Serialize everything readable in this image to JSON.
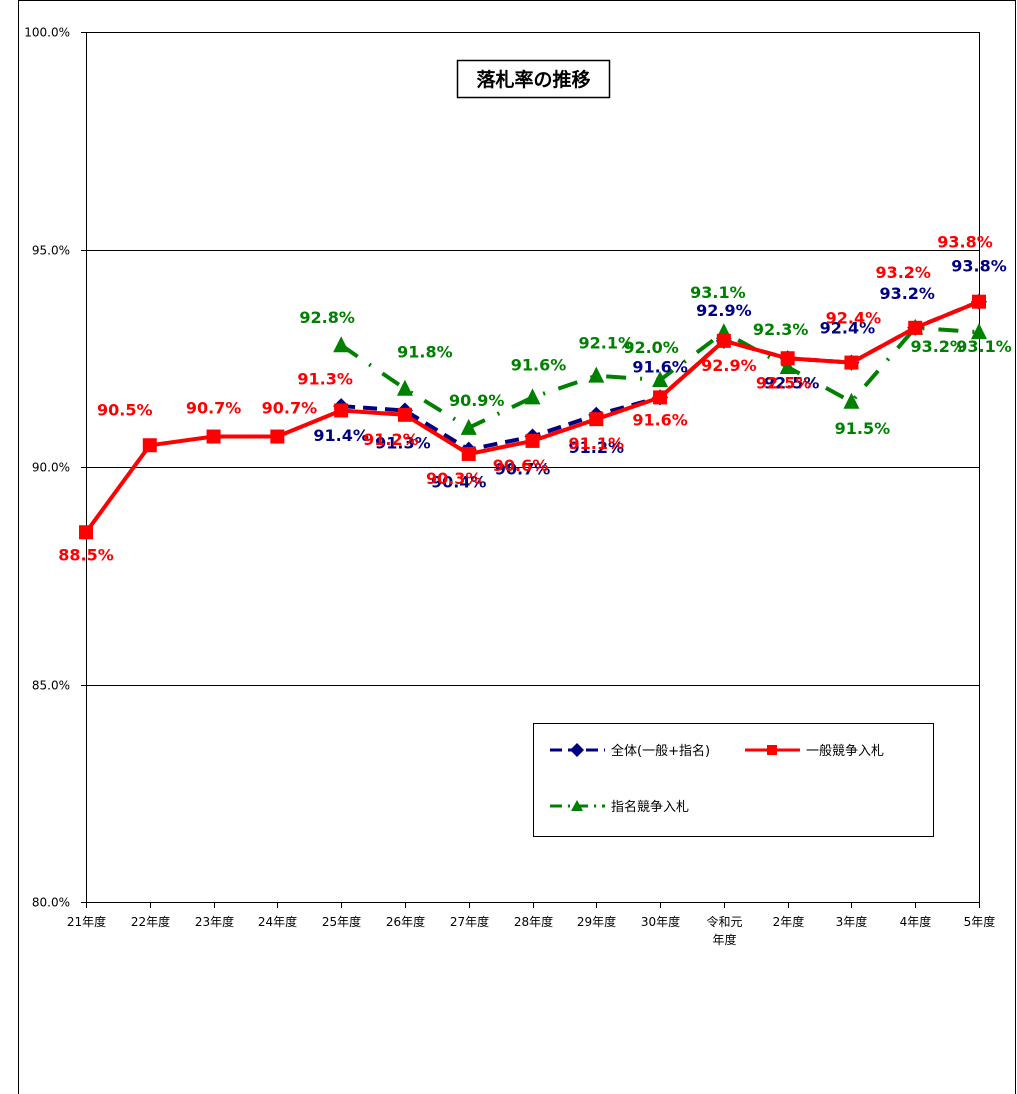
{
  "chart_data": {
    "type": "line",
    "title": "落札率の推移",
    "xlabel": "",
    "ylabel": "",
    "ylim": [
      80,
      100
    ],
    "y_ticks": [
      "80.0%",
      "85.0%",
      "90.0%",
      "95.0%",
      "100.0%"
    ],
    "y_tick_values": [
      80,
      85,
      90,
      95,
      100
    ],
    "categories": [
      [
        "21年度"
      ],
      [
        "22年度"
      ],
      [
        "23年度"
      ],
      [
        "24年度"
      ],
      [
        "25年度"
      ],
      [
        "26年度"
      ],
      [
        "27年度"
      ],
      [
        "28年度"
      ],
      [
        "29年度"
      ],
      [
        "30年度"
      ],
      [
        "令和元",
        "年度"
      ],
      [
        "2年度"
      ],
      [
        "3年度"
      ],
      [
        "4年度"
      ],
      [
        "5年度"
      ]
    ],
    "grid": true,
    "legend_position": "lower-right",
    "series": [
      {
        "name": "全体(一般+指名)",
        "color": "#000080",
        "marker": "diamond",
        "line_style": "dash",
        "values": [
          null,
          null,
          null,
          null,
          91.4,
          91.3,
          90.4,
          90.7,
          91.2,
          91.6,
          92.9,
          92.5,
          92.4,
          93.2,
          93.8
        ],
        "labels": [
          "",
          "",
          "",
          "",
          "91.4%",
          "91.3%",
          "90.4%",
          "90.7%",
          "91.2%",
          "91.6%",
          "92.9%",
          "92.5%",
          "92.4%",
          "93.2%",
          "93.8%"
        ]
      },
      {
        "name": "一般競争入札",
        "color": "#ff0000",
        "marker": "square",
        "line_style": "solid",
        "values": [
          88.5,
          90.5,
          90.7,
          90.7,
          91.3,
          91.2,
          90.3,
          90.6,
          91.1,
          91.6,
          92.9,
          92.5,
          92.4,
          93.2,
          93.8
        ],
        "labels": [
          "88.5%",
          "90.5%",
          "90.7%",
          "90.7%",
          "91.3%",
          "91.2%",
          "90.3%",
          "90.6%",
          "91.1%",
          "91.6%",
          "92.9%",
          "92.5%",
          "92.4%",
          "93.2%",
          "93.8%"
        ]
      },
      {
        "name": "指名競争入札",
        "color": "#008000",
        "marker": "triangle",
        "line_style": "dashdot",
        "values": [
          null,
          null,
          null,
          null,
          92.8,
          91.8,
          90.9,
          91.6,
          92.1,
          92.0,
          93.1,
          92.3,
          91.5,
          93.2,
          93.1
        ],
        "labels": [
          "",
          "",
          "",
          "",
          "92.8%",
          "91.8%",
          "90.9%",
          "91.6%",
          "92.1%",
          "92.0%",
          "93.1%",
          "92.3%",
          "91.5%",
          "93.2%",
          "93.1%"
        ]
      }
    ]
  }
}
